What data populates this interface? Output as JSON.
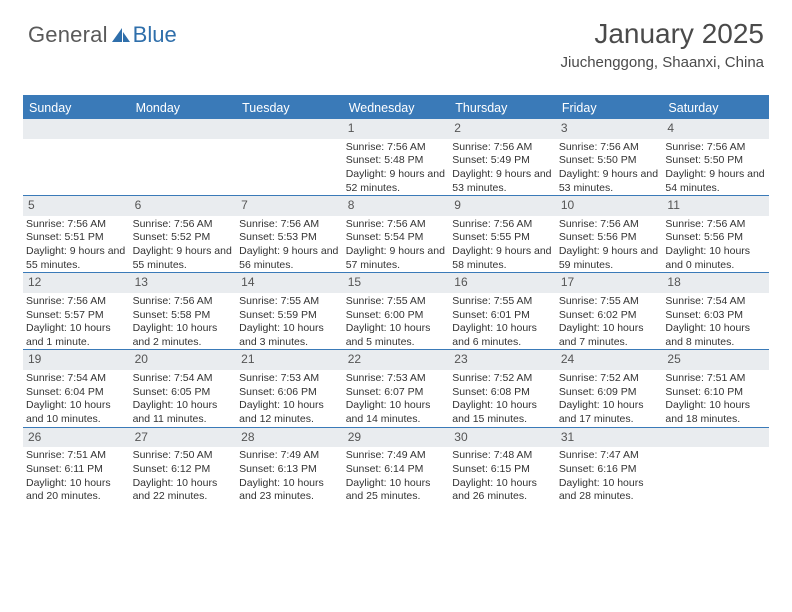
{
  "logo": {
    "text_general": "General",
    "text_blue": "Blue"
  },
  "header": {
    "title": "January 2025",
    "location": "Jiuchenggong, Shaanxi, China"
  },
  "styling": {
    "header_bg": "#3a7ab8",
    "header_text": "#ffffff",
    "daynum_bg": "#e9ecef",
    "week_divider": "#3a7ab8",
    "body_text": "#333333",
    "title_color": "#4a4a4a",
    "font_family": "Arial",
    "page_bg": "#ffffff",
    "title_fontsize": 28,
    "location_fontsize": 15,
    "header_fontsize": 12.5,
    "cell_fontsize": 10.5
  },
  "daynames": [
    "Sunday",
    "Monday",
    "Tuesday",
    "Wednesday",
    "Thursday",
    "Friday",
    "Saturday"
  ],
  "weeks": [
    [
      null,
      null,
      null,
      {
        "n": "1",
        "sr": "7:56 AM",
        "ss": "5:48 PM",
        "dl": "Daylight: 9 hours and 52 minutes."
      },
      {
        "n": "2",
        "sr": "7:56 AM",
        "ss": "5:49 PM",
        "dl": "Daylight: 9 hours and 53 minutes."
      },
      {
        "n": "3",
        "sr": "7:56 AM",
        "ss": "5:50 PM",
        "dl": "Daylight: 9 hours and 53 minutes."
      },
      {
        "n": "4",
        "sr": "7:56 AM",
        "ss": "5:50 PM",
        "dl": "Daylight: 9 hours and 54 minutes."
      }
    ],
    [
      {
        "n": "5",
        "sr": "7:56 AM",
        "ss": "5:51 PM",
        "dl": "Daylight: 9 hours and 55 minutes."
      },
      {
        "n": "6",
        "sr": "7:56 AM",
        "ss": "5:52 PM",
        "dl": "Daylight: 9 hours and 55 minutes."
      },
      {
        "n": "7",
        "sr": "7:56 AM",
        "ss": "5:53 PM",
        "dl": "Daylight: 9 hours and 56 minutes."
      },
      {
        "n": "8",
        "sr": "7:56 AM",
        "ss": "5:54 PM",
        "dl": "Daylight: 9 hours and 57 minutes."
      },
      {
        "n": "9",
        "sr": "7:56 AM",
        "ss": "5:55 PM",
        "dl": "Daylight: 9 hours and 58 minutes."
      },
      {
        "n": "10",
        "sr": "7:56 AM",
        "ss": "5:56 PM",
        "dl": "Daylight: 9 hours and 59 minutes."
      },
      {
        "n": "11",
        "sr": "7:56 AM",
        "ss": "5:56 PM",
        "dl": "Daylight: 10 hours and 0 minutes."
      }
    ],
    [
      {
        "n": "12",
        "sr": "7:56 AM",
        "ss": "5:57 PM",
        "dl": "Daylight: 10 hours and 1 minute."
      },
      {
        "n": "13",
        "sr": "7:56 AM",
        "ss": "5:58 PM",
        "dl": "Daylight: 10 hours and 2 minutes."
      },
      {
        "n": "14",
        "sr": "7:55 AM",
        "ss": "5:59 PM",
        "dl": "Daylight: 10 hours and 3 minutes."
      },
      {
        "n": "15",
        "sr": "7:55 AM",
        "ss": "6:00 PM",
        "dl": "Daylight: 10 hours and 5 minutes."
      },
      {
        "n": "16",
        "sr": "7:55 AM",
        "ss": "6:01 PM",
        "dl": "Daylight: 10 hours and 6 minutes."
      },
      {
        "n": "17",
        "sr": "7:55 AM",
        "ss": "6:02 PM",
        "dl": "Daylight: 10 hours and 7 minutes."
      },
      {
        "n": "18",
        "sr": "7:54 AM",
        "ss": "6:03 PM",
        "dl": "Daylight: 10 hours and 8 minutes."
      }
    ],
    [
      {
        "n": "19",
        "sr": "7:54 AM",
        "ss": "6:04 PM",
        "dl": "Daylight: 10 hours and 10 minutes."
      },
      {
        "n": "20",
        "sr": "7:54 AM",
        "ss": "6:05 PM",
        "dl": "Daylight: 10 hours and 11 minutes."
      },
      {
        "n": "21",
        "sr": "7:53 AM",
        "ss": "6:06 PM",
        "dl": "Daylight: 10 hours and 12 minutes."
      },
      {
        "n": "22",
        "sr": "7:53 AM",
        "ss": "6:07 PM",
        "dl": "Daylight: 10 hours and 14 minutes."
      },
      {
        "n": "23",
        "sr": "7:52 AM",
        "ss": "6:08 PM",
        "dl": "Daylight: 10 hours and 15 minutes."
      },
      {
        "n": "24",
        "sr": "7:52 AM",
        "ss": "6:09 PM",
        "dl": "Daylight: 10 hours and 17 minutes."
      },
      {
        "n": "25",
        "sr": "7:51 AM",
        "ss": "6:10 PM",
        "dl": "Daylight: 10 hours and 18 minutes."
      }
    ],
    [
      {
        "n": "26",
        "sr": "7:51 AM",
        "ss": "6:11 PM",
        "dl": "Daylight: 10 hours and 20 minutes."
      },
      {
        "n": "27",
        "sr": "7:50 AM",
        "ss": "6:12 PM",
        "dl": "Daylight: 10 hours and 22 minutes."
      },
      {
        "n": "28",
        "sr": "7:49 AM",
        "ss": "6:13 PM",
        "dl": "Daylight: 10 hours and 23 minutes."
      },
      {
        "n": "29",
        "sr": "7:49 AM",
        "ss": "6:14 PM",
        "dl": "Daylight: 10 hours and 25 minutes."
      },
      {
        "n": "30",
        "sr": "7:48 AM",
        "ss": "6:15 PM",
        "dl": "Daylight: 10 hours and 26 minutes."
      },
      {
        "n": "31",
        "sr": "7:47 AM",
        "ss": "6:16 PM",
        "dl": "Daylight: 10 hours and 28 minutes."
      },
      null
    ]
  ],
  "labels": {
    "sunrise_prefix": "Sunrise: ",
    "sunset_prefix": "Sunset: "
  }
}
